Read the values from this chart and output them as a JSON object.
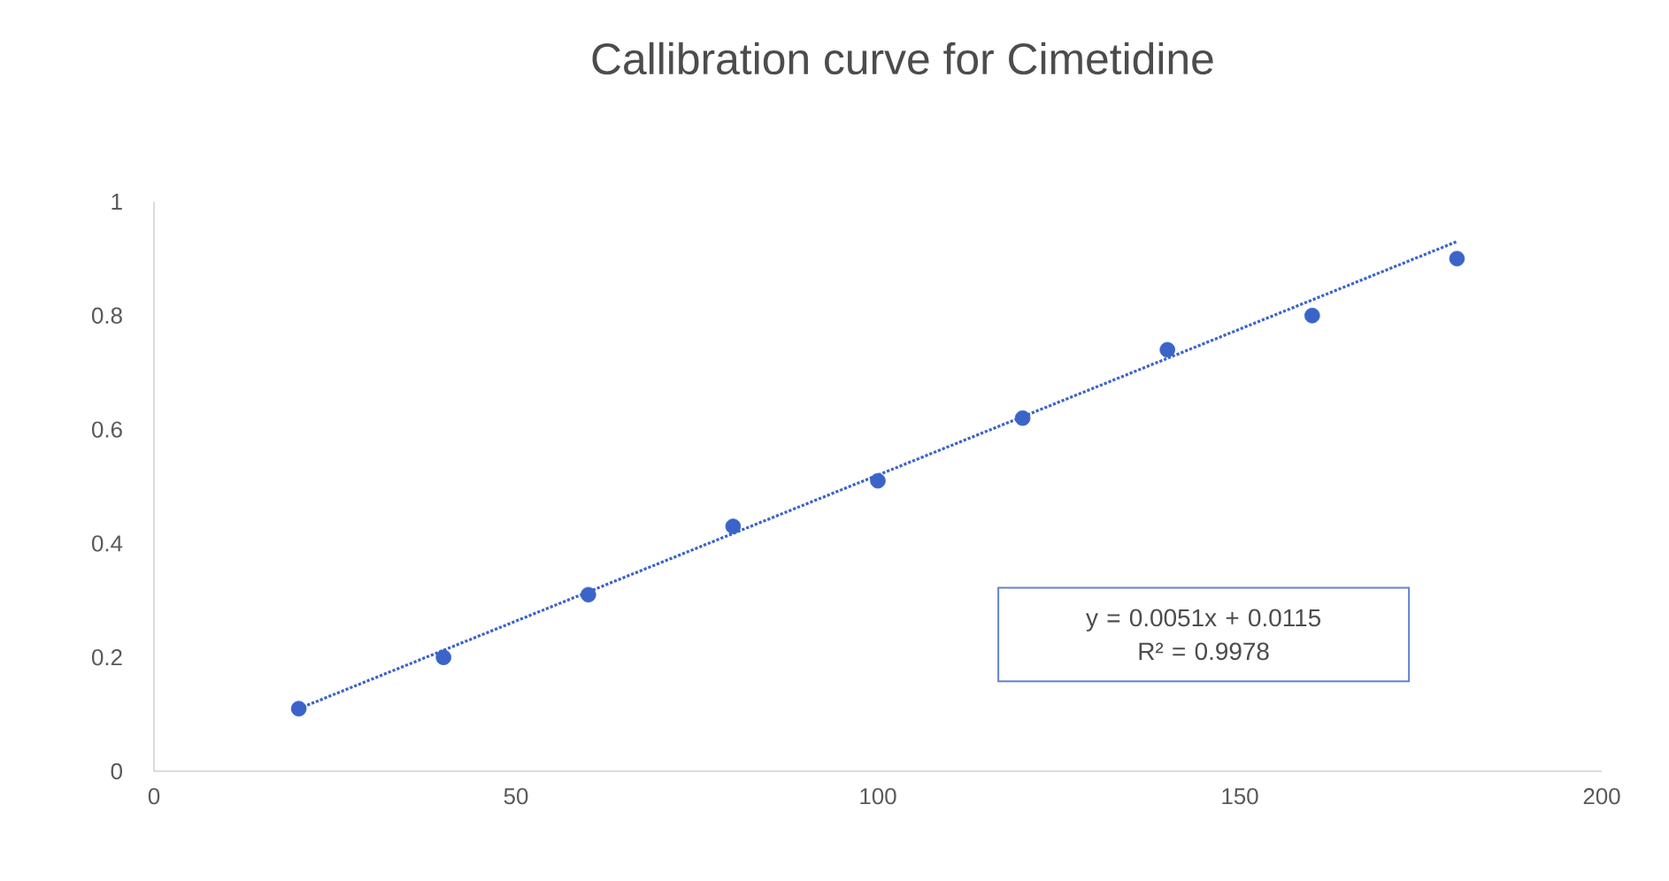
{
  "chart_data": {
    "type": "scatter",
    "title": "Callibration curve for Cimetidine",
    "xlim": [
      0,
      200
    ],
    "xticks": [
      0,
      50,
      100,
      150,
      200
    ],
    "ylim": [
      0,
      1
    ],
    "yticks": [
      0,
      0.2,
      0.4,
      0.6,
      0.8,
      1
    ],
    "grid": false,
    "series": [
      {
        "color": "#3b64c8",
        "marker": "circle",
        "x": [
          20,
          40,
          60,
          80,
          100,
          120,
          140,
          160,
          180
        ],
        "values": [
          0.11,
          0.2,
          0.31,
          0.43,
          0.51,
          0.62,
          0.74,
          0.8,
          0.9
        ]
      },
      {
        "type": "line",
        "color": "#3b64c8",
        "line_style": "dotted",
        "marker": "none",
        "x": [
          20,
          180
        ],
        "values": [
          0.11,
          0.93
        ]
      }
    ],
    "annotations": [
      "y = 0.0051x + 0.0115",
      "R² = 0.9978"
    ]
  }
}
